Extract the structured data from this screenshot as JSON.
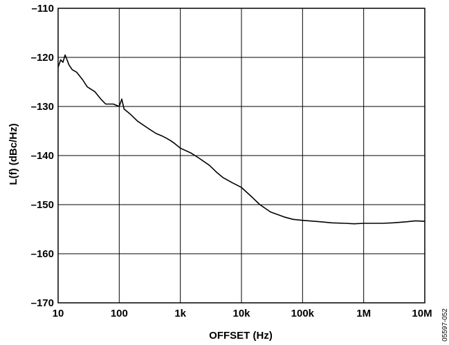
{
  "chart_data": {
    "type": "line",
    "xlabel": "OFFSET (Hz)",
    "ylabel": "L(f) (dBc/Hz)",
    "x_scale": "log",
    "xlim": [
      10,
      10000000
    ],
    "ylim": [
      -170,
      -110
    ],
    "grid": true,
    "x_ticks": [
      {
        "value": 10,
        "label": "10"
      },
      {
        "value": 100,
        "label": "100"
      },
      {
        "value": 1000,
        "label": "1k"
      },
      {
        "value": 10000,
        "label": "10k"
      },
      {
        "value": 100000,
        "label": "100k"
      },
      {
        "value": 1000000,
        "label": "1M"
      },
      {
        "value": 10000000,
        "label": "10M"
      }
    ],
    "y_ticks": [
      {
        "value": -110,
        "label": "–110"
      },
      {
        "value": -120,
        "label": "–120"
      },
      {
        "value": -130,
        "label": "–130"
      },
      {
        "value": -140,
        "label": "–140"
      },
      {
        "value": -150,
        "label": "–150"
      },
      {
        "value": -160,
        "label": "–160"
      },
      {
        "value": -170,
        "label": "–170"
      }
    ],
    "series": [
      {
        "color": "#000000",
        "x": [
          10,
          11,
          12,
          13,
          14,
          15,
          17,
          20,
          25,
          30,
          40,
          50,
          60,
          80,
          100,
          110,
          120,
          150,
          200,
          300,
          400,
          500,
          600,
          700,
          800,
          1000,
          1500,
          2000,
          3000,
          4000,
          5000,
          7000,
          10000,
          15000,
          20000,
          30000,
          50000,
          70000,
          100000,
          200000,
          300000,
          500000,
          700000,
          1000000,
          2000000,
          3000000,
          5000000,
          7000000,
          10000000
        ],
        "y": [
          -122,
          -120.5,
          -121,
          -119.5,
          -120.5,
          -121.5,
          -122.5,
          -123,
          -124.5,
          -126,
          -127,
          -128.5,
          -129.5,
          -129.5,
          -130,
          -128.5,
          -130.5,
          -131.5,
          -133,
          -134.5,
          -135.5,
          -136,
          -136.5,
          -137,
          -137.5,
          -138.5,
          -139.5,
          -140.5,
          -142,
          -143.5,
          -144.5,
          -145.5,
          -146.5,
          -148.5,
          -150,
          -151.5,
          -152.5,
          -153,
          -153.2,
          -153.5,
          -153.7,
          -153.8,
          -153.9,
          -153.8,
          -153.8,
          -153.7,
          -153.5,
          -153.3,
          -153.4
        ]
      }
    ]
  },
  "figure_code": "05597-052"
}
